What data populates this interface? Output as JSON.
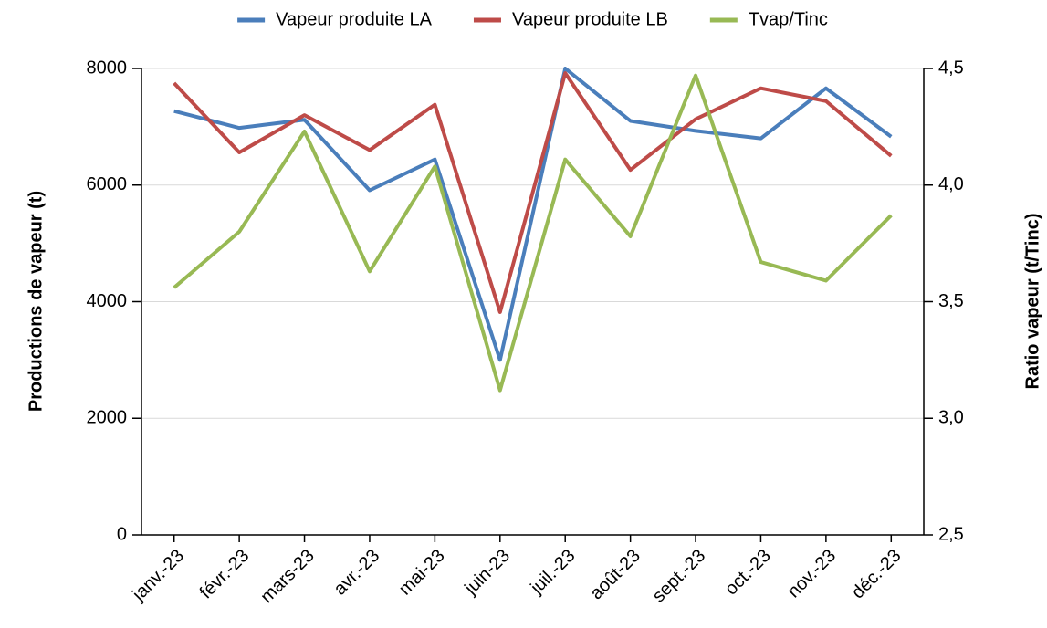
{
  "chart_data": {
    "type": "line",
    "categories": [
      "janv.-23",
      "févr.-23",
      "mars-23",
      "avr.-23",
      "mai-23",
      "juin-23",
      "juil.-23",
      "août-23",
      "sept.-23",
      "oct.-23",
      "nov.-23",
      "déc.-23"
    ],
    "series": [
      {
        "name": "Vapeur produite LA",
        "color": "#4a7ebb",
        "values": [
          7270,
          6980,
          7120,
          5910,
          6440,
          3000,
          8000,
          7100,
          6930,
          6800,
          7660,
          6830
        ]
      },
      {
        "name": "Vapeur produite LB",
        "color": "#be4b48",
        "values": [
          7750,
          6560,
          7200,
          6600,
          7380,
          3820,
          7920,
          6260,
          7130,
          7660,
          7440,
          6500
        ]
      },
      {
        "name": "Tvap/Tinc",
        "color": "#98b954",
        "axis": "y2",
        "values": [
          3.56,
          3.8,
          4.23,
          3.63,
          4.08,
          3.12,
          4.11,
          3.78,
          4.47,
          3.67,
          3.59,
          3.87
        ]
      }
    ],
    "y_label": "Productions de vapeur (t)",
    "y2_label": "Ratio vapeur (t/Tinc)",
    "ylim": [
      0,
      8000
    ],
    "yticks": [
      0,
      2000,
      4000,
      6000,
      8000
    ],
    "y2lim": [
      2.5,
      4.5
    ],
    "y2ticks": [
      {
        "value": 2.5,
        "label": "2,5"
      },
      {
        "value": 3,
        "label": "3,0"
      },
      {
        "value": 3.5,
        "label": "3,5"
      },
      {
        "value": 4,
        "label": "4,0"
      },
      {
        "value": 4.5,
        "label": "4,5"
      }
    ],
    "grid": true,
    "legend": "top"
  }
}
